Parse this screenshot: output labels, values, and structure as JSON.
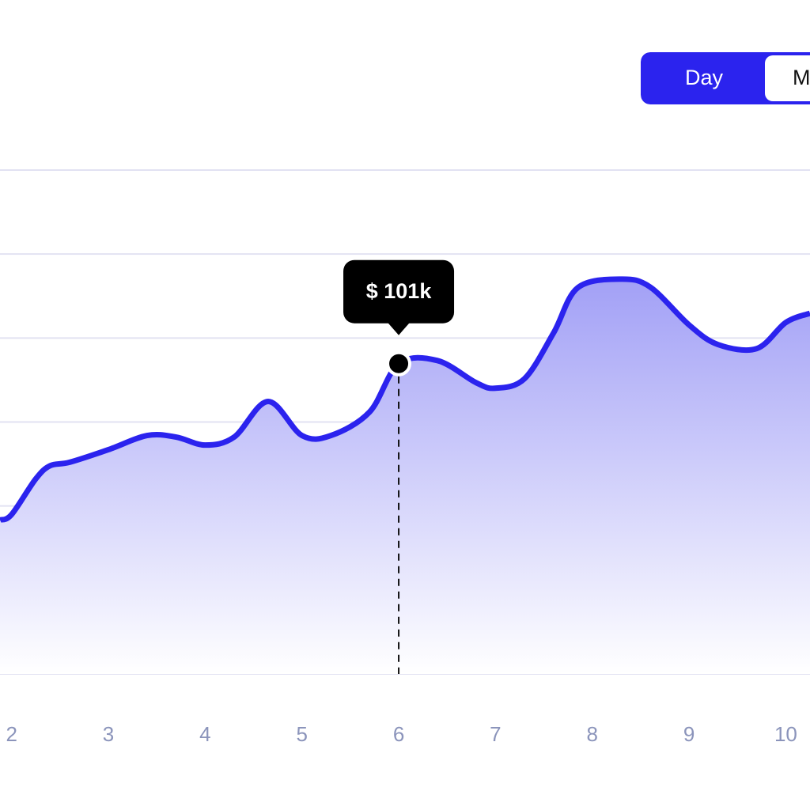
{
  "chart_data": {
    "type": "area",
    "controls": {
      "active": "Day",
      "other": "M"
    },
    "x": [
      1.88,
      2,
      2.25,
      2.4,
      2.6,
      3,
      3.4,
      3.7,
      4,
      4.3,
      4.65,
      5,
      5.3,
      5.7,
      6,
      6.4,
      6.8,
      7,
      7.3,
      7.6,
      7.85,
      8.3,
      8.6,
      9,
      9.3,
      9.7,
      10,
      10.25
    ],
    "series": [
      {
        "color": "#2b23ee",
        "values": [
          50.1,
          51.9,
          63.5,
          67.8,
          68.9,
          73.0,
          77.6,
          77.1,
          74.5,
          77.1,
          88.7,
          77.6,
          77.6,
          85.3,
          101,
          102.0,
          94.8,
          93.0,
          96.1,
          111.0,
          125.7,
          128.5,
          125.9,
          113.6,
          107.2,
          105.9,
          114.4,
          117.4
        ]
      }
    ],
    "xlim": [
      1.88,
      10.25
    ],
    "xticks": [
      2,
      3,
      4,
      5,
      6,
      7,
      8,
      9,
      10
    ],
    "ylim": [
      0,
      164
    ],
    "grid": true,
    "tooltip": {
      "x": 6,
      "value": 101,
      "label": "$ 101k"
    }
  }
}
